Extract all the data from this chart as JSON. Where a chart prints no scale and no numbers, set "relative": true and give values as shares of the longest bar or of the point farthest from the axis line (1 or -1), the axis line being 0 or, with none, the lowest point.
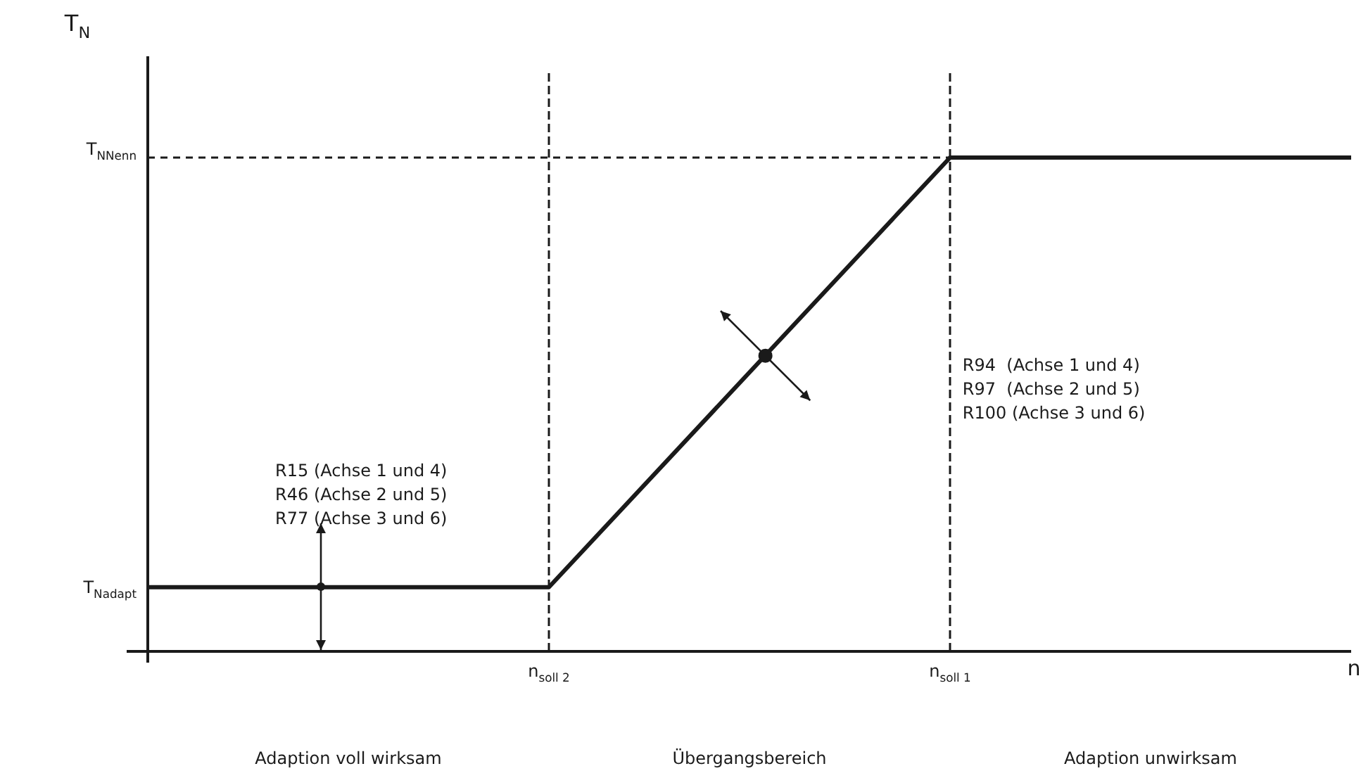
{
  "chart_data": {
    "type": "line",
    "relative": true,
    "xlabel": "n",
    "categories": [
      null,
      "n$_{soll 2}$",
      "n$_{soll 1}$",
      null
    ],
    "series": [
      {
        "color": "#1a1a1a",
        "values": [
          0.13,
          0.13,
          1,
          1
        ]
      },
      {
        "color": "#1a1a1a",
        "values": [
          1,
          1,
          1,
          null
        ],
        "line_style": "dashed"
      }
    ],
    "annotations": [
      "T$_{Nadapt}$",
      "T$_{NNenn}$",
      "R15 (Achse 1 und 4)\nR46 (Achse 2 und 5)\nR77 (Achse 3 und 6)",
      "R94  (Achse 1 und 4)\nR97  (Achse 2 und 5)\nR100 (Achse 3 und 6)",
      "Adaption voll wirksam",
      "Übergangsbereich",
      "Adaption unwirksam",
      "T$_{N}$"
    ]
  }
}
